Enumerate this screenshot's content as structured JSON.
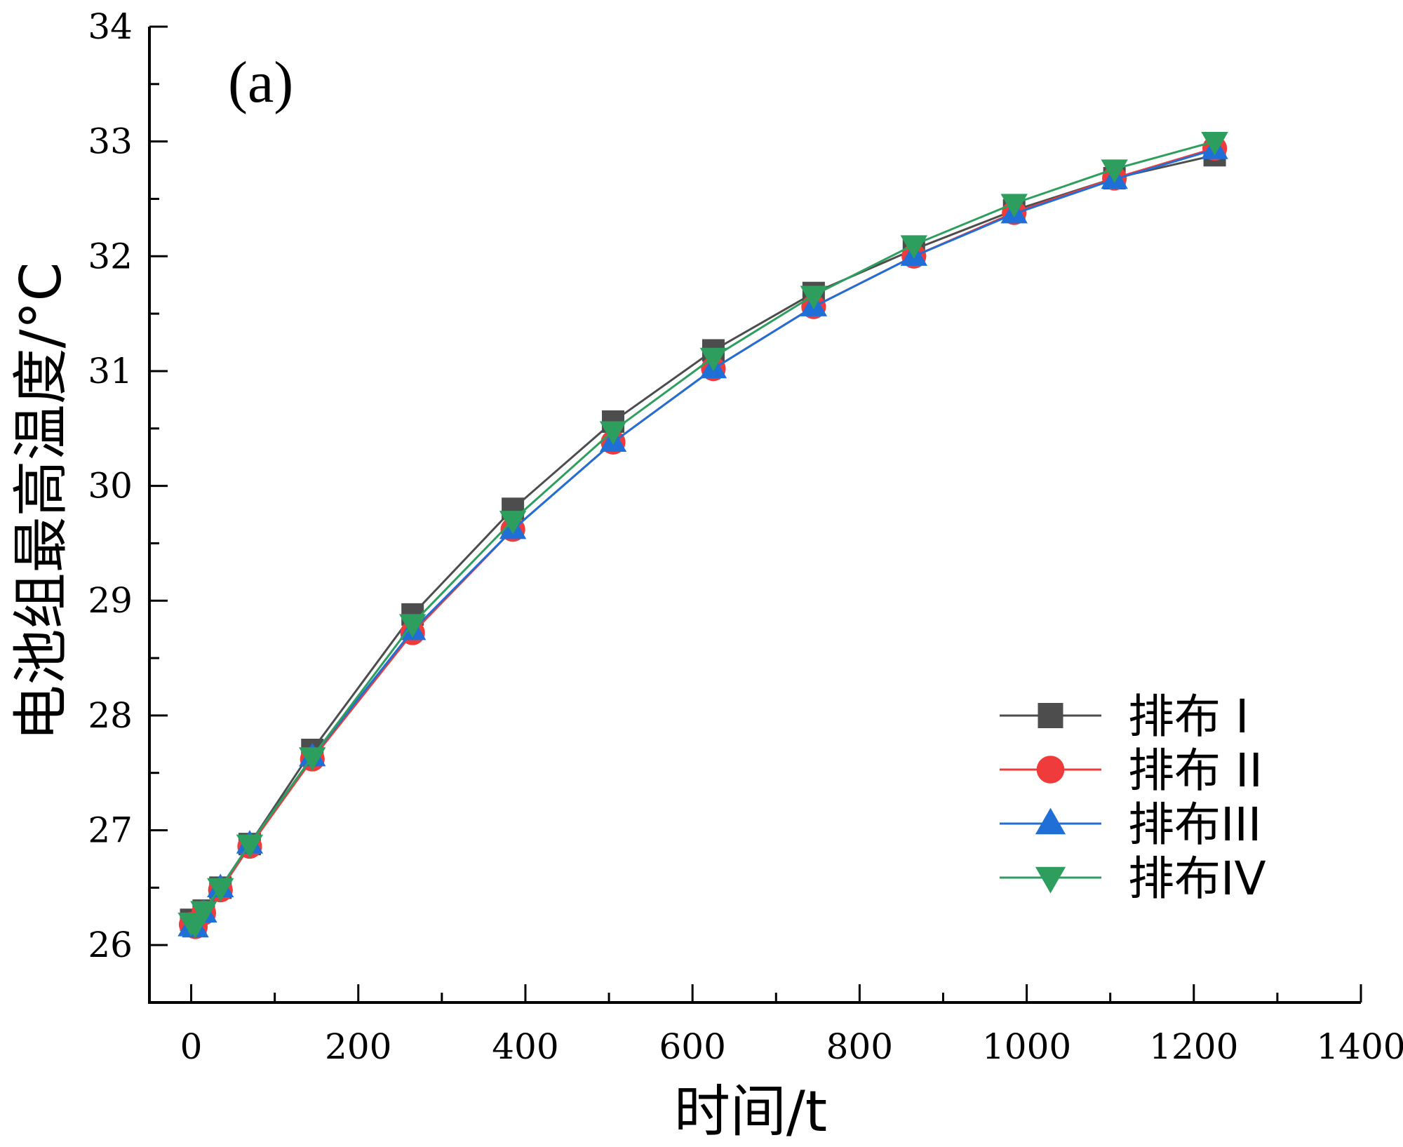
{
  "chart_data": {
    "type": "line",
    "panel_label": "(a)",
    "xlabel": "时间/t",
    "ylabel": "电池组最高温度/°C",
    "xlim": [
      -50,
      1400
    ],
    "ylim": [
      25.5,
      34
    ],
    "xticks": [
      0,
      200,
      400,
      600,
      800,
      1000,
      1200,
      1400
    ],
    "yticks": [
      26,
      27,
      28,
      29,
      30,
      31,
      32,
      33,
      34
    ],
    "x": [
      0,
      5,
      15,
      35,
      70,
      145,
      265,
      385,
      505,
      625,
      745,
      865,
      985,
      1105,
      1225
    ],
    "series": [
      {
        "name": "排布 I",
        "color": "#4d4d4d",
        "marker": "square",
        "values": [
          26.22,
          26.2,
          26.3,
          26.5,
          26.88,
          27.7,
          28.88,
          29.8,
          30.56,
          31.18,
          31.68,
          32.06,
          32.4,
          32.68,
          32.88
        ]
      },
      {
        "name": "排布 II",
        "color": "#ef3b3b",
        "marker": "circle",
        "values": [
          26.18,
          26.16,
          26.28,
          26.48,
          26.86,
          27.62,
          28.72,
          29.62,
          30.38,
          31.02,
          31.56,
          32.0,
          32.38,
          32.68,
          32.94
        ]
      },
      {
        "name": "排布III",
        "color": "#1f6fd6",
        "marker": "triangle-up",
        "values": [
          26.16,
          26.15,
          26.28,
          26.5,
          26.88,
          27.64,
          28.74,
          29.62,
          30.38,
          31.02,
          31.56,
          32.0,
          32.37,
          32.67,
          32.93
        ]
      },
      {
        "name": "排布IV",
        "color": "#2e9e5e",
        "marker": "triangle-down",
        "values": [
          26.2,
          26.18,
          26.3,
          26.5,
          26.88,
          27.64,
          28.8,
          29.7,
          30.48,
          31.12,
          31.66,
          32.1,
          32.46,
          32.76,
          33.0
        ]
      }
    ],
    "grid": false,
    "legend_position": "bottom-right"
  }
}
